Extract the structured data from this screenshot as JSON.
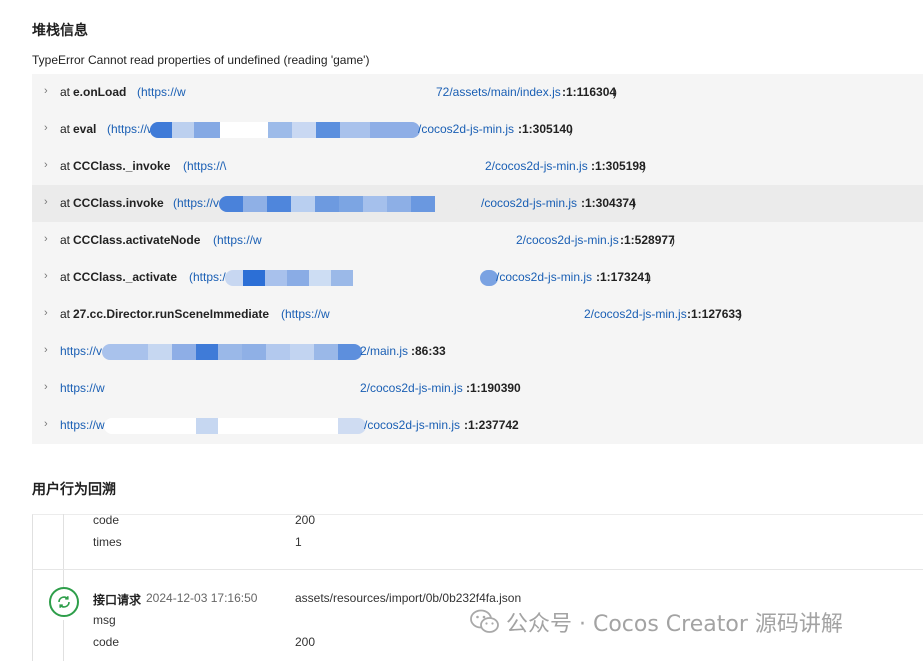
{
  "stack_section": {
    "title": "堆栈信息",
    "error_message": "TypeError Cannot read properties of undefined (reading 'game')",
    "frames": [
      {
        "at": "at",
        "fn": "e.onLoad",
        "url_start": "(https://w",
        "url_end": "72/assets/main/index.js",
        "loc": ":1:116304",
        "close": ")"
      },
      {
        "at": "at",
        "fn": "eval",
        "url_start": "(https://w",
        "url_end": "/cocos2d-js-min.js",
        "loc": ":1:305140",
        "close": ")"
      },
      {
        "at": "at",
        "fn": "CCClass._invoke",
        "url_start": "(https://\\",
        "url_end": "2/cocos2d-js-min.js",
        "loc": ":1:305198",
        "close": ")"
      },
      {
        "at": "at",
        "fn": "CCClass.invoke",
        "url_start": "(https://v",
        "url_end": "/cocos2d-js-min.js",
        "loc": ":1:304374",
        "close": ")"
      },
      {
        "at": "at",
        "fn": "CCClass.activateNode",
        "url_start": "(https://w",
        "url_end": "2/cocos2d-js-min.js",
        "loc": ":1:528977",
        "close": ")"
      },
      {
        "at": "at",
        "fn": "CCClass._activate",
        "url_start": "(https://",
        "url_end": "/cocos2d-js-min.js",
        "loc": ":1:173241",
        "close": ")"
      },
      {
        "at": "at",
        "fn": "27.cc.Director.runSceneImmediate",
        "url_start": "(https://w",
        "url_end": "2/cocos2d-js-min.js",
        "loc": ":1:127633",
        "close": ")"
      },
      {
        "at": "",
        "fn": "",
        "url_start": "https://v",
        "url_end": "2/main.js",
        "loc": ":86:33",
        "close": ""
      },
      {
        "at": "",
        "fn": "",
        "url_start": "https://w",
        "url_end": "2/cocos2d-js-min.js",
        "loc": ":1:190390",
        "close": ""
      },
      {
        "at": "",
        "fn": "",
        "url_start": "https://w",
        "url_end": "/cocos2d-js-min.js",
        "loc": ":1:237742",
        "close": ""
      }
    ]
  },
  "behavior_section": {
    "title": "用户行为回溯",
    "prev_event": {
      "rows": [
        {
          "key": "code",
          "value": "200"
        },
        {
          "key": "times",
          "value": "1"
        }
      ]
    },
    "event": {
      "type": "接口请求",
      "time": "2024-12-03 17:16:50",
      "path": "assets/resources/import/0b/0b232f4fa.json",
      "rows": [
        {
          "key": "msg",
          "value": ""
        },
        {
          "key": "code",
          "value": "200"
        }
      ]
    }
  },
  "watermark": {
    "text": "公众号 · Cocos Creator 源码讲解"
  },
  "colors": {
    "link": "#1a5fb4",
    "stack_bg": "#f5f5f5",
    "hover_bg": "#ebebeb",
    "event_icon": "#2e9e4a"
  }
}
